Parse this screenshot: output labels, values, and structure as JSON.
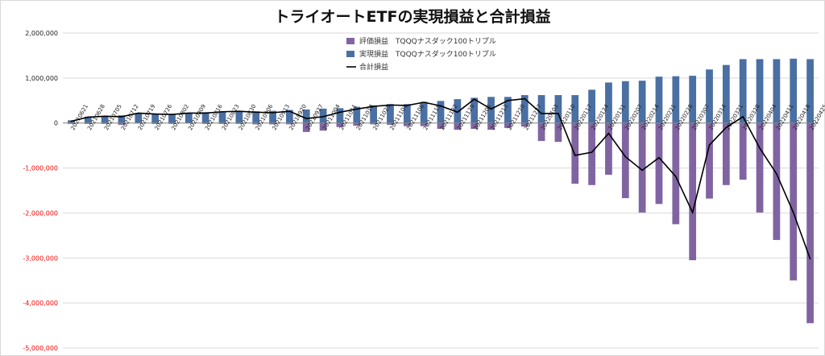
{
  "chart_data": {
    "type": "bar",
    "title": "トライオートETFの実現損益と合計損益",
    "xlabel": "",
    "ylabel": "",
    "ylim": [
      -5000000,
      2000000
    ],
    "yticks": [
      2000000,
      1000000,
      0,
      -1000000,
      -2000000,
      -3000000,
      -4000000,
      -5000000
    ],
    "ytick_labels": [
      "2,000,000",
      "1,000,000",
      "0",
      "-1,000,000",
      "-2,000,000",
      "-3,000,000",
      "-4,000,000",
      "-5,000,000"
    ],
    "negative_tick_color": "#ff0000",
    "grid": true,
    "legend_position": "top-center",
    "categories": [
      "20210621",
      "20210628",
      "20210705",
      "20210712",
      "20210719",
      "20210726",
      "20210802",
      "20210809",
      "20210816",
      "20210823",
      "20210830",
      "20210906",
      "20210913",
      "20210920",
      "20210927",
      "20211004",
      "20211011",
      "20211018",
      "20211025",
      "20211101",
      "20211108",
      "20211115",
      "20211122",
      "20211129",
      "20211206",
      "20211213",
      "20211220",
      "20211227",
      "20220103",
      "20220110",
      "20220117",
      "20220124",
      "20220131",
      "20220207",
      "20220214",
      "20220221",
      "20220228",
      "20220307",
      "20220314",
      "20220321",
      "20220328",
      "20220404",
      "20220411",
      "20220418",
      "20220425"
    ],
    "series": [
      {
        "name": "評価損益　TQQQナスダック100トリプル",
        "kind": "bar",
        "color": "#8064a2",
        "values": [
          -20000,
          -20000,
          -20000,
          -40000,
          -10000,
          -20000,
          -20000,
          -10000,
          -20000,
          -20000,
          -20000,
          -30000,
          -30000,
          -30000,
          -200000,
          -170000,
          -90000,
          -60000,
          -30000,
          -40000,
          -70000,
          -70000,
          -130000,
          -150000,
          -130000,
          -150000,
          -110000,
          -80000,
          -400000,
          -420000,
          -1350000,
          -1380000,
          -1150000,
          -1670000,
          -1990000,
          -1800000,
          -2250000,
          -3050000,
          -1680000,
          -1380000,
          -1260000,
          -1990000,
          -2600000,
          -3500000,
          -4450000
        ]
      },
      {
        "name": "実現損益　TQQQナスダック100トリプル",
        "kind": "bar",
        "color": "#4a6fa3",
        "values": [
          60000,
          140000,
          160000,
          170000,
          220000,
          210000,
          200000,
          230000,
          240000,
          260000,
          270000,
          260000,
          270000,
          290000,
          300000,
          320000,
          330000,
          360000,
          390000,
          420000,
          420000,
          470000,
          490000,
          530000,
          560000,
          580000,
          580000,
          620000,
          620000,
          620000,
          620000,
          740000,
          900000,
          930000,
          940000,
          1030000,
          1040000,
          1050000,
          1190000,
          1290000,
          1420000,
          1420000,
          1420000,
          1430000,
          1420000
        ]
      },
      {
        "name": "合計損益",
        "kind": "line",
        "color": "#000000",
        "values": [
          40000,
          130000,
          150000,
          140000,
          220000,
          200000,
          190000,
          220000,
          220000,
          250000,
          260000,
          240000,
          230000,
          260000,
          100000,
          140000,
          240000,
          310000,
          370000,
          400000,
          390000,
          460000,
          380000,
          240000,
          530000,
          310000,
          500000,
          540000,
          210000,
          210000,
          -720000,
          -650000,
          -230000,
          -750000,
          -1050000,
          -770000,
          -1190000,
          -1990000,
          -490000,
          -100000,
          140000,
          -560000,
          -1130000,
          -1990000,
          -3020000
        ]
      }
    ]
  }
}
